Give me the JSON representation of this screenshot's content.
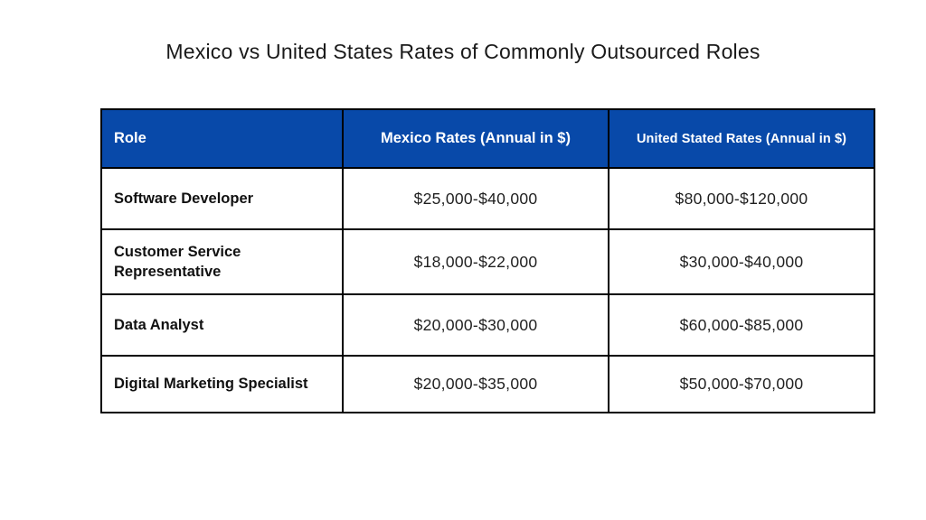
{
  "page": {
    "title": "Mexico vs United States Rates of Commonly Outsourced Roles",
    "background_color": "#ffffff",
    "header_fill_color": "#0849a9",
    "header_text_color": "#ffffff",
    "border_color": "#000000"
  },
  "table": {
    "columns": [
      {
        "label": "Role"
      },
      {
        "label": "Mexico Rates (Annual in $)"
      },
      {
        "label": "United Stated Rates (Annual in $)"
      }
    ],
    "rows": [
      {
        "role": "Software Developer",
        "mexico": "$25,000-$40,000",
        "us": "$80,000-$120,000"
      },
      {
        "role": "Customer Service Representative",
        "mexico": "$18,000-$22,000",
        "us": "$30,000-$40,000"
      },
      {
        "role": "Data Analyst",
        "mexico": "$20,000-$30,000",
        "us": "$60,000-$85,000"
      },
      {
        "role": "Digital Marketing Specialist",
        "mexico": "$20,000-$35,000",
        "us": "$50,000-$70,000"
      }
    ]
  },
  "chart_data": {
    "type": "table",
    "title": "Mexico vs United States Rates of Commonly Outsourced Roles",
    "columns": [
      "Role",
      "Mexico Rates (Annual in $)",
      "United Stated Rates (Annual in $)"
    ],
    "rows": [
      [
        "Software Developer",
        "$25,000-$40,000",
        "$80,000-$120,000"
      ],
      [
        "Customer Service Representative",
        "$18,000-$22,000",
        "$30,000-$40,000"
      ],
      [
        "Data Analyst",
        "$20,000-$30,000",
        "$60,000-$85,000"
      ],
      [
        "Digital Marketing Specialist",
        "$20,000-$35,000",
        "$50,000-$70,000"
      ]
    ]
  }
}
